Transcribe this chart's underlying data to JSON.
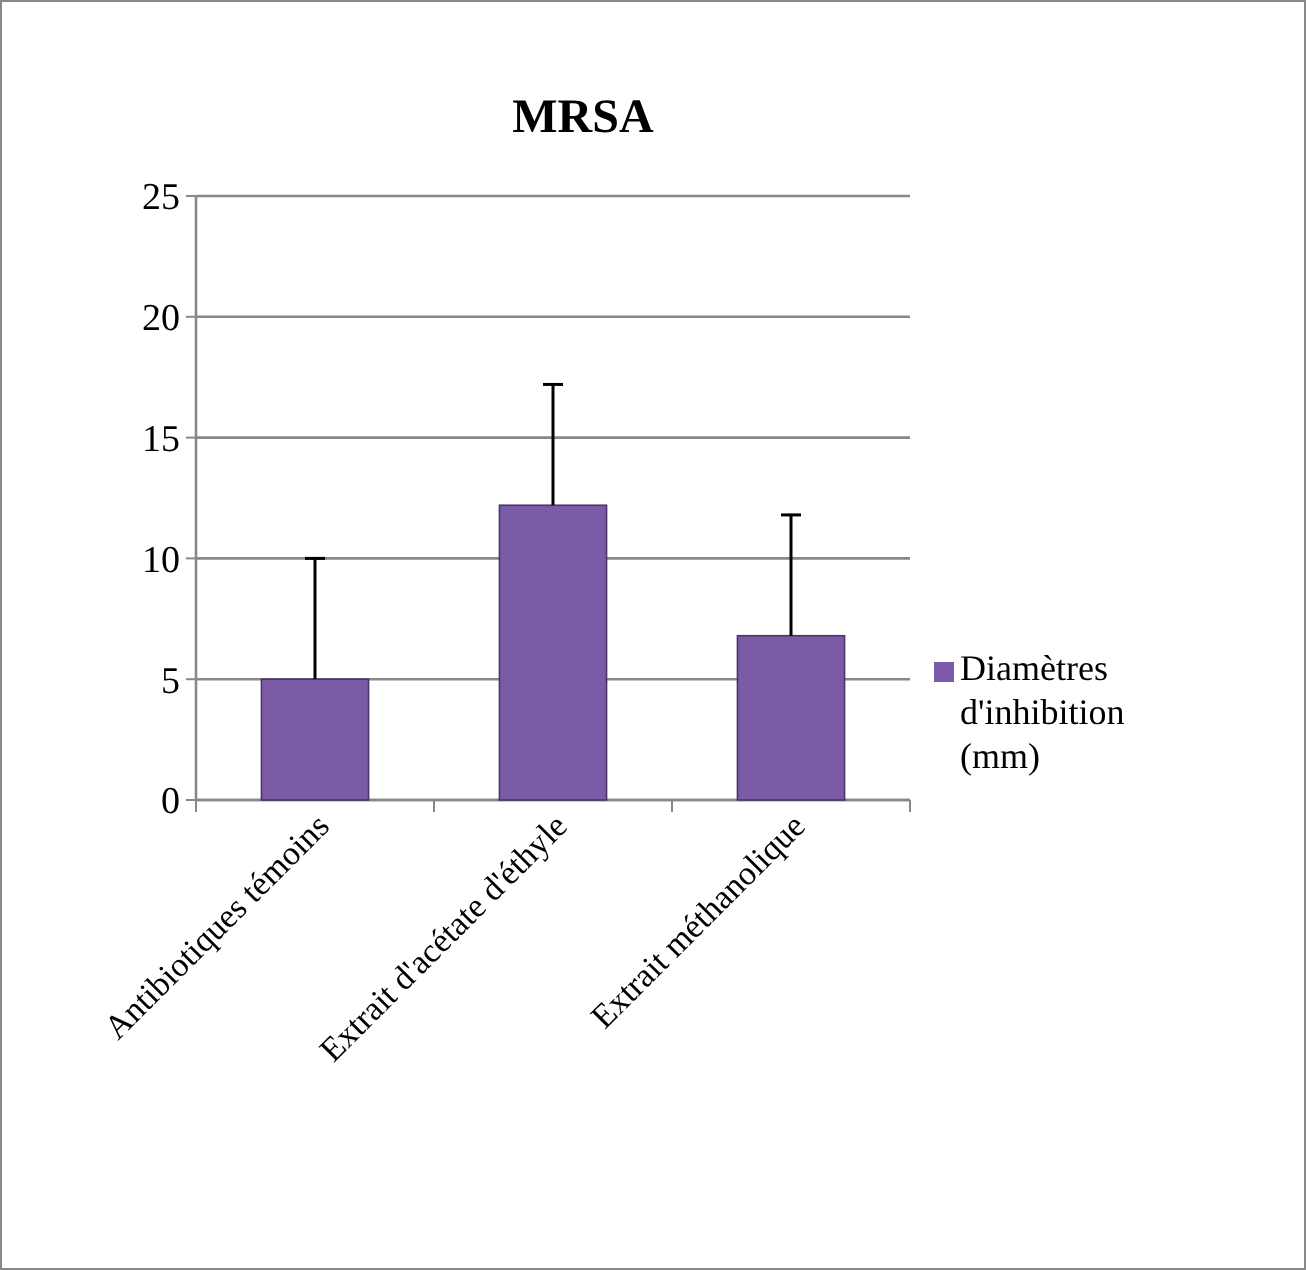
{
  "chart_data": {
    "type": "bar",
    "title": "MRSA",
    "categories": [
      "Antibiotiques témoins",
      "Extrait d'acétate d'éthyle",
      "Extrait méthanolique"
    ],
    "series": [
      {
        "name": "Diamètres d'inhibition (mm)",
        "color": "#7b5aa6",
        "values": [
          5,
          12.2,
          6.8
        ],
        "errors": [
          [
            5,
            10
          ],
          [
            12.2,
            17.2
          ],
          [
            6.8,
            11.8
          ]
        ]
      }
    ],
    "ylim": [
      0,
      25
    ],
    "yticks": [
      0,
      5,
      10,
      15,
      20,
      25
    ],
    "grid": "y",
    "legend": "right"
  }
}
